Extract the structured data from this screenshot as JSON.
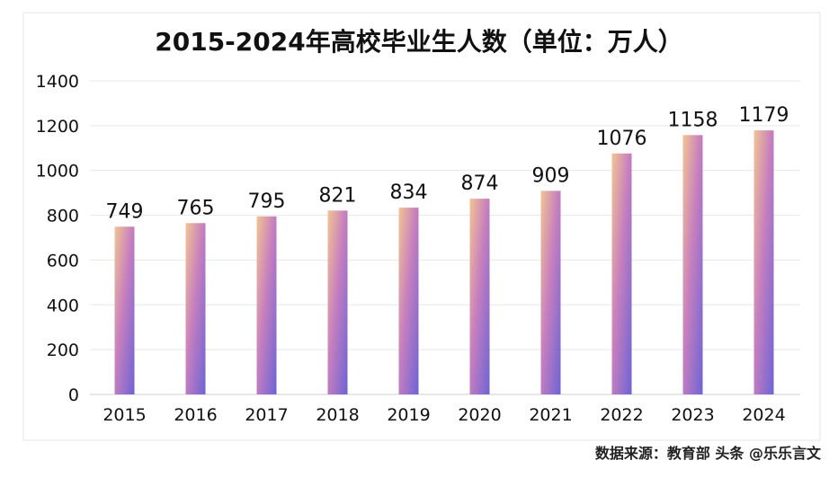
{
  "chart_data": {
    "type": "bar",
    "title": "2015-2024年高校毕业生人数（单位：万人）",
    "categories": [
      "2015",
      "2016",
      "2017",
      "2018",
      "2019",
      "2020",
      "2021",
      "2022",
      "2023",
      "2024"
    ],
    "values": [
      749,
      765,
      795,
      821,
      834,
      874,
      909,
      1076,
      1158,
      1179
    ],
    "data_labels": [
      "749",
      "765",
      "795",
      "821",
      "834",
      "874",
      "909",
      "1076",
      "1158",
      "1179"
    ],
    "yticks": [
      "0",
      "200",
      "400",
      "600",
      "800",
      "1000",
      "1200",
      "1400"
    ],
    "ylim": [
      0,
      1400
    ],
    "grid": true,
    "xlabel": "",
    "ylabel": ""
  },
  "watermark": {
    "text": "数据来源：教育部 头条 @乐乐言文"
  },
  "colors": {
    "bar_top": "#f2c493",
    "bar_mid": "#c77fbe",
    "bar_bottom": "#6d63d6",
    "grid": "#e5e5e5",
    "text": "#111111"
  }
}
